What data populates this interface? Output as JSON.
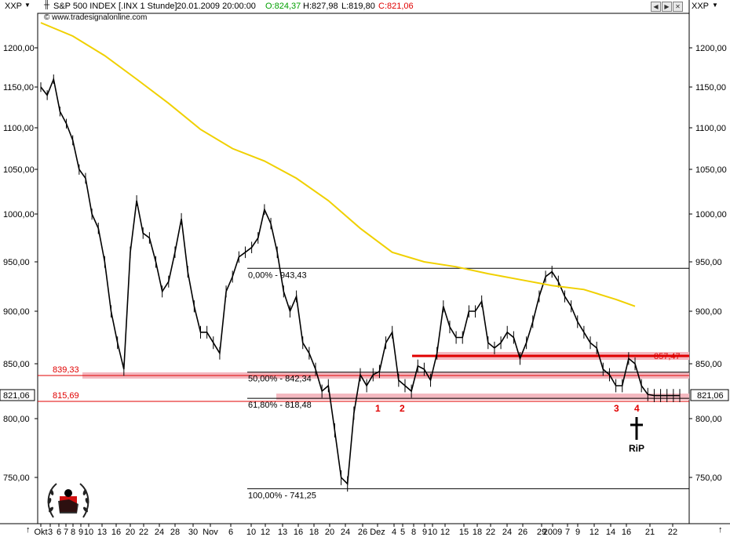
{
  "header": {
    "symbol_left": "XXP",
    "symbol_right": "XXP",
    "title_name": "S&P 500 INDEX [.INX  1 Stunde]",
    "title_time": "20.01.2009 20:00:00",
    "open": "O:824,37",
    "high": "H:827,98",
    "low": "L:819,80",
    "close": "C:821,06",
    "watermark": "© www.tradesignalonline.com"
  },
  "colors": {
    "price": "#000000",
    "ma": "#f0d000",
    "support_band": "#f4b8c0",
    "support_line": "#e00000",
    "label_red": "#e00000",
    "fib_line": "#000000"
  },
  "chart_data": {
    "type": "line",
    "title": "S&P 500 INDEX [.INX  1 Stunde]",
    "xlabel": "",
    "ylabel": "",
    "ylim": [
      722,
      1222
    ],
    "y_ticks": [
      "1200,00",
      "1150,00",
      "1100,00",
      "1050,00",
      "1000,00",
      "950,00",
      "900,00",
      "850,00",
      "800,00",
      "750,00"
    ],
    "y_tick_values": [
      1200,
      1150,
      1100,
      1050,
      1000,
      950,
      900,
      850,
      800,
      750
    ],
    "x_tick_labels": [
      "Okt",
      "3",
      "6",
      "7",
      "8",
      "9",
      "10",
      "13",
      "16",
      "20",
      "22",
      "24",
      "28",
      "30",
      "Nov",
      "6",
      "10",
      "12",
      "13",
      "16",
      "18",
      "20",
      "24",
      "26",
      "Dez",
      "4",
      "5",
      "8",
      "9",
      "10",
      "12",
      "15",
      "18",
      "22",
      "24",
      "26",
      "29",
      "2009",
      "7",
      "9",
      "12",
      "14",
      "16",
      "21",
      "22"
    ],
    "current_price_label": "821,06",
    "series": [
      {
        "name": "S&P 500",
        "x": [
          0,
          2,
          4,
          6,
          8,
          10,
          12,
          14,
          16,
          18,
          20,
          22,
          24,
          26,
          28,
          30,
          32,
          34,
          36,
          38,
          40,
          42,
          44,
          46,
          48,
          50,
          52,
          54,
          56,
          58,
          60,
          62,
          64,
          66,
          68,
          70,
          72,
          74,
          76,
          78,
          80,
          82,
          84,
          86,
          88,
          90,
          92,
          94,
          96,
          98,
          100,
          102,
          104,
          106,
          108,
          110,
          112,
          114,
          116,
          118,
          120,
          122,
          124,
          126,
          128,
          130,
          132,
          134,
          136,
          138,
          140,
          142,
          144,
          146,
          148,
          150,
          152,
          154,
          156,
          158,
          160,
          162,
          164,
          166,
          168,
          170,
          172,
          174,
          176,
          178,
          180,
          182,
          184,
          186,
          188,
          190,
          192,
          194,
          196,
          198,
          200
        ],
        "values": [
          1150,
          1140,
          1160,
          1120,
          1105,
          1085,
          1050,
          1040,
          1000,
          985,
          950,
          900,
          870,
          845,
          960,
          1015,
          980,
          975,
          950,
          920,
          930,
          960,
          995,
          940,
          905,
          880,
          880,
          870,
          860,
          920,
          935,
          955,
          960,
          965,
          975,
          1005,
          990,
          960,
          920,
          900,
          915,
          870,
          860,
          845,
          825,
          830,
          790,
          750,
          745,
          805,
          840,
          830,
          840,
          843,
          870,
          880,
          835,
          830,
          825,
          848,
          845,
          835,
          860,
          905,
          885,
          875,
          875,
          900,
          900,
          910,
          870,
          865,
          870,
          880,
          875,
          855,
          870,
          890,
          915,
          935,
          940,
          930,
          915,
          905,
          890,
          880,
          870,
          865,
          845,
          840,
          830,
          830,
          855,
          850,
          830,
          822,
          821,
          821,
          821,
          821,
          821
        ]
      },
      {
        "name": "MA",
        "x": [
          0,
          10,
          20,
          30,
          40,
          50,
          60,
          70,
          80,
          90,
          100,
          110,
          120,
          130,
          140,
          150,
          160,
          170,
          180,
          186
        ],
        "values": [
          1232,
          1215,
          1190,
          1160,
          1130,
          1098,
          1075,
          1060,
          1040,
          1015,
          985,
          960,
          950,
          945,
          938,
          932,
          926,
          922,
          912,
          905
        ]
      }
    ],
    "annotations": {
      "levels_left": [
        "839,33",
        "815,69"
      ],
      "level_right": "857,47",
      "fib": [
        "0,00% - 943,43",
        "50,00% - 842,34",
        "61,80% - 818,48",
        "100,00% - 741,25"
      ],
      "counts": [
        "1",
        "2",
        "3",
        "4"
      ],
      "rip": "RiP"
    }
  }
}
